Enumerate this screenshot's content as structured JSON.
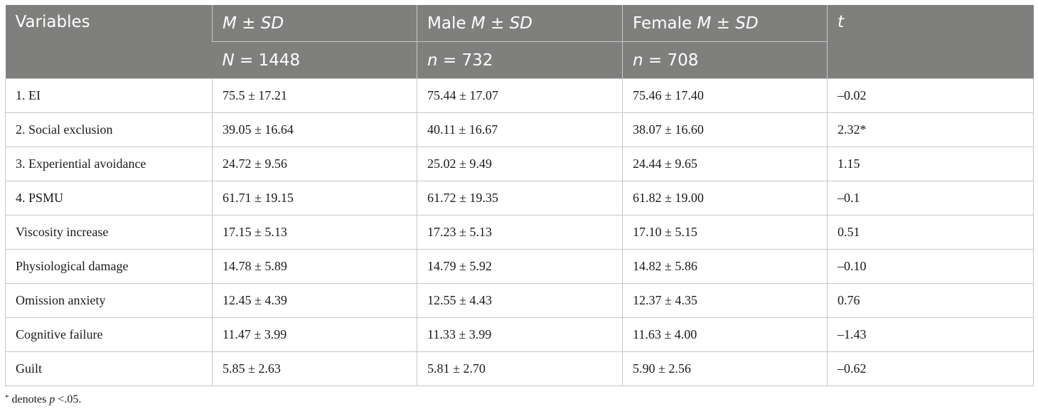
{
  "header": {
    "variables": "Variables",
    "overall_stat_prefix": "M",
    "overall_stat_sep": " ± ",
    "overall_stat_suffix": "SD",
    "male_label": "Male ",
    "female_label": "Female ",
    "t": "t",
    "overall_n_prefix": "N",
    "overall_n_value": " = 1448",
    "male_n_prefix": "n",
    "male_n_value": " = 732",
    "female_n_prefix": "n",
    "female_n_value": " = 708"
  },
  "rows": [
    {
      "variable": "1. EI",
      "overall": "75.5 ± 17.21",
      "male": "75.44 ± 17.07",
      "female": "75.46 ± 17.40",
      "t": "–0.02"
    },
    {
      "variable": "2. Social exclusion",
      "overall": "39.05 ± 16.64",
      "male": "40.11 ± 16.67",
      "female": "38.07 ± 16.60",
      "t": "2.32*"
    },
    {
      "variable": "3. Experiential avoidance",
      "overall": "24.72 ± 9.56",
      "male": "25.02 ± 9.49",
      "female": "24.44 ± 9.65",
      "t": "1.15"
    },
    {
      "variable": "4. PSMU",
      "overall": "61.71 ± 19.15",
      "male": "61.72 ± 19.35",
      "female": "61.82 ± 19.00",
      "t": "–0.1"
    },
    {
      "variable": "Viscosity increase",
      "overall": "17.15 ± 5.13",
      "male": "17.23 ± 5.13",
      "female": "17.10 ± 5.15",
      "t": "0.51"
    },
    {
      "variable": "Physiological damage",
      "overall": "14.78 ± 5.89",
      "male": "14.79 ± 5.92",
      "female": "14.82 ± 5.86",
      "t": "–0.10"
    },
    {
      "variable": "Omission anxiety",
      "overall": "12.45 ± 4.39",
      "male": "12.55 ± 4.43",
      "female": "12.37 ± 4.35",
      "t": "0.76"
    },
    {
      "variable": "Cognitive failure",
      "overall": "11.47 ± 3.99",
      "male": "11.33 ± 3.99",
      "female": "11.63 ± 4.00",
      "t": "–1.43"
    },
    {
      "variable": "Guilt",
      "overall": "5.85 ± 2.63",
      "male": "5.81 ± 2.70",
      "female": "5.90 ± 2.56",
      "t": "–0.62"
    }
  ],
  "footnote": {
    "marker": "*",
    "text_before": " denotes ",
    "p": "p",
    "text_after": " <.05."
  }
}
